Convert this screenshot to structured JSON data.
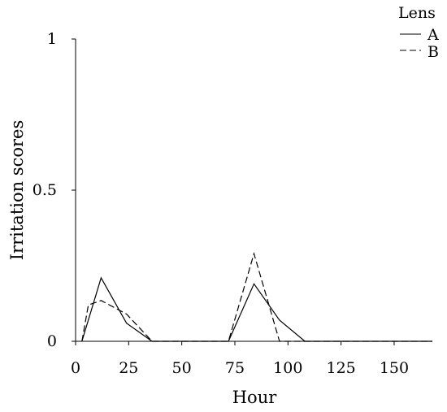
{
  "chart_data": {
    "type": "line",
    "xlabel": "Hour",
    "ylabel": "Irritation scores",
    "xlim": [
      0,
      168
    ],
    "ylim": [
      0,
      1
    ],
    "x_ticks": [
      0,
      25,
      50,
      75,
      100,
      125,
      150
    ],
    "y_ticks": [
      {
        "value": 0,
        "label": "0"
      },
      {
        "value": 0.5,
        "label": "0.5"
      },
      {
        "value": 1,
        "label": "1"
      }
    ],
    "grid": false,
    "legend": {
      "title": "Lens",
      "placement": "top-right",
      "entries": [
        "A",
        "B"
      ]
    },
    "series": [
      {
        "name": "A",
        "style": "solid",
        "x": [
          3,
          12,
          24,
          36,
          48,
          60,
          72,
          84,
          96,
          108,
          120,
          132,
          144,
          156,
          168
        ],
        "y": [
          0,
          0.21,
          0.06,
          0,
          0,
          0,
          0,
          0.19,
          0.07,
          0,
          0,
          0,
          0,
          0,
          0
        ]
      },
      {
        "name": "B",
        "style": "dashed",
        "x": [
          3,
          6,
          12,
          24,
          36,
          48,
          60,
          72,
          84,
          96,
          108,
          120,
          132,
          144,
          156,
          168
        ],
        "y": [
          0,
          0.12,
          0.135,
          0.09,
          0,
          0,
          0,
          0,
          0.29,
          0,
          0,
          0,
          0,
          0,
          0,
          0
        ]
      }
    ]
  }
}
